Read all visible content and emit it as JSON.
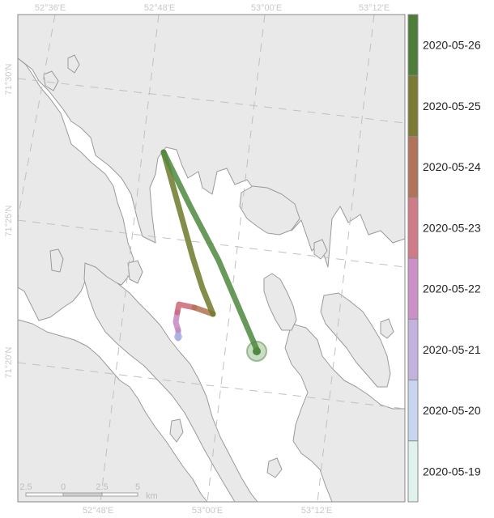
{
  "map": {
    "top_ticks": [
      "52°36'E",
      "52°48'E",
      "53°00'E",
      "53°12'E"
    ],
    "bottom_ticks": [
      "52°48'E",
      "53°00'E",
      "53°12'E"
    ],
    "left_ticks": [
      "71°30'N",
      "71°25'N",
      "71°20'N"
    ],
    "colors": {
      "land": "#e9e9e9",
      "water": "#ffffff",
      "coast": "#9a9a9a",
      "graticule": "#c0c0c0"
    }
  },
  "track": {
    "segments": [
      {
        "date": "2020-05-20",
        "color": "#9fb5e3"
      },
      {
        "date": "2020-05-21",
        "color": "#b39ddb"
      },
      {
        "date": "2020-05-22",
        "color": "#c586c0"
      },
      {
        "date": "2020-05-23",
        "color": "#cc6677"
      },
      {
        "date": "2020-05-24",
        "color": "#b47152"
      },
      {
        "date": "2020-05-25",
        "color": "#6f7a2a"
      },
      {
        "date": "2020-05-26",
        "color": "#4e8a3e"
      }
    ],
    "end_marker_color": "#4e8a3e"
  },
  "legend": {
    "items": [
      {
        "label": "2020-05-26",
        "color": "#4e7d3a"
      },
      {
        "label": "2020-05-25",
        "color": "#7b7a33"
      },
      {
        "label": "2020-05-24",
        "color": "#b1745a"
      },
      {
        "label": "2020-05-23",
        "color": "#cf7b88"
      },
      {
        "label": "2020-05-22",
        "color": "#cc90c6"
      },
      {
        "label": "2020-05-21",
        "color": "#c3b1de"
      },
      {
        "label": "2020-05-20",
        "color": "#c7d5ee"
      },
      {
        "label": "2020-05-19",
        "color": "#dff2ee"
      }
    ]
  },
  "scalebar": {
    "labels": [
      "2.5",
      "0",
      "2.5",
      "5"
    ],
    "unit": "km"
  }
}
